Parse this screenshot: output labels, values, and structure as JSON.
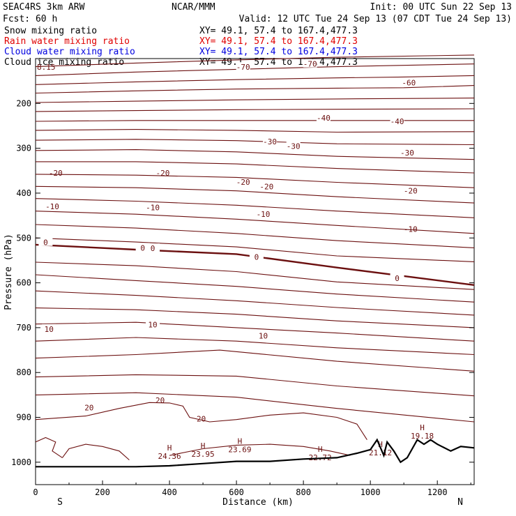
{
  "header": {
    "model": "SEAC4RS  3km ARW",
    "center": "NCAR/MMM",
    "init": "Init: 00 UTC Sun 22 Sep 13",
    "fcst": "Fcst:   60 h",
    "valid": "Valid: 12 UTC Tue 24 Sep 13 (07 CDT Tue 24 Sep 13)"
  },
  "fields": [
    {
      "label": "Snow mixing ratio",
      "xy": "XY=  49.1, 57.4 to 167.4,477.3",
      "color": "#000000"
    },
    {
      "label": "Rain water mixing ratio",
      "xy": "XY=  49.1, 57.4 to 167.4,477.3",
      "color": "#e00000"
    },
    {
      "label": "Cloud water mixing ratio",
      "xy": "XY=  49.1, 57.4 to 167.4,477.3",
      "color": "#0000e0"
    },
    {
      "label": "Cloud ice mixing ratio",
      "xy": "XY=  49.1, 57.4 to 167.4,477.3",
      "color": "#000000"
    }
  ],
  "corner_label": "8.15",
  "chart_data": {
    "type": "cross-section contour",
    "xlabel": "Distance (km)",
    "ylabel": "Pressure (hPa)",
    "xlim": [
      0,
      1310
    ],
    "ylim": [
      1050,
      100
    ],
    "x_ticks": [
      0,
      200,
      400,
      600,
      800,
      1000,
      1200
    ],
    "x_tick_labels": [
      "0",
      "200",
      "400",
      "600",
      "800",
      "1000",
      "1200"
    ],
    "y_ticks": [
      200,
      300,
      400,
      500,
      600,
      700,
      800,
      900,
      1000
    ],
    "y_tick_labels": [
      "200",
      "300",
      "400",
      "500",
      "600",
      "700",
      "800",
      "900",
      "1000"
    ],
    "x_end_labels": {
      "left": "S",
      "right": "N"
    },
    "contour_color": "#6b0f0f",
    "isotherms": [
      {
        "p": [
          [
            0,
            118
          ],
          [
            300,
            110
          ],
          [
            600,
            103
          ],
          [
            900,
            97
          ],
          [
            1310,
            92
          ]
        ]
      },
      {
        "p": [
          [
            0,
            138
          ],
          [
            300,
            130
          ],
          [
            600,
            124
          ],
          [
            900,
            118
          ],
          [
            1310,
            112
          ]
        ],
        "label": "-70",
        "at": [
          [
            620,
            119
          ],
          [
            820,
            112
          ]
        ]
      },
      {
        "p": [
          [
            0,
            158
          ],
          [
            300,
            152
          ],
          [
            600,
            147
          ],
          [
            900,
            143
          ],
          [
            1100,
            141
          ],
          [
            1310,
            138
          ]
        ]
      },
      {
        "p": [
          [
            0,
            177
          ],
          [
            300,
            172
          ],
          [
            600,
            168
          ],
          [
            900,
            166
          ],
          [
            1100,
            165
          ],
          [
            1310,
            160
          ]
        ],
        "label": "-60",
        "at": [
          [
            1115,
            154
          ]
        ]
      },
      {
        "p": [
          [
            0,
            198
          ],
          [
            300,
            195
          ],
          [
            600,
            192
          ],
          [
            900,
            190
          ],
          [
            1310,
            188
          ]
        ]
      },
      {
        "p": [
          [
            0,
            218
          ],
          [
            300,
            216
          ],
          [
            600,
            214
          ],
          [
            900,
            213
          ],
          [
            1310,
            212
          ]
        ]
      },
      {
        "p": [
          [
            0,
            240
          ],
          [
            300,
            238
          ],
          [
            600,
            238
          ],
          [
            900,
            238
          ],
          [
            1310,
            238
          ]
        ],
        "label": "-40",
        "at": [
          [
            860,
            232
          ],
          [
            1080,
            240
          ]
        ]
      },
      {
        "p": [
          [
            0,
            260
          ],
          [
            300,
            258
          ],
          [
            600,
            260
          ],
          [
            900,
            264
          ],
          [
            1310,
            263
          ]
        ]
      },
      {
        "p": [
          [
            0,
            282
          ],
          [
            300,
            280
          ],
          [
            600,
            283
          ],
          [
            900,
            290
          ],
          [
            1310,
            292
          ]
        ],
        "label": "-30",
        "at": [
          [
            700,
            285
          ],
          [
            770,
            295
          ],
          [
            1110,
            310
          ]
        ]
      },
      {
        "p": [
          [
            0,
            305
          ],
          [
            300,
            303
          ],
          [
            600,
            308
          ],
          [
            900,
            318
          ],
          [
            1310,
            325
          ]
        ]
      },
      {
        "p": [
          [
            0,
            330
          ],
          [
            300,
            330
          ],
          [
            600,
            335
          ],
          [
            900,
            345
          ],
          [
            1310,
            355
          ]
        ],
        "label": "-20",
        "at": [
          [
            60,
            355
          ],
          [
            380,
            355
          ],
          [
            620,
            375
          ],
          [
            690,
            385
          ],
          [
            1120,
            395
          ]
        ]
      },
      {
        "p": [
          [
            0,
            358
          ],
          [
            300,
            360
          ],
          [
            600,
            365
          ],
          [
            900,
            376
          ],
          [
            1310,
            388
          ]
        ]
      },
      {
        "p": [
          [
            0,
            385
          ],
          [
            300,
            388
          ],
          [
            600,
            395
          ],
          [
            900,
            408
          ],
          [
            1310,
            422
          ]
        ]
      },
      {
        "p": [
          [
            0,
            412
          ],
          [
            300,
            418
          ],
          [
            600,
            427
          ],
          [
            900,
            440
          ],
          [
            1310,
            455
          ]
        ],
        "label": "-10",
        "at": [
          [
            50,
            430
          ],
          [
            350,
            432
          ],
          [
            680,
            447
          ],
          [
            1120,
            480
          ]
        ]
      },
      {
        "p": [
          [
            0,
            440
          ],
          [
            300,
            447
          ],
          [
            600,
            458
          ],
          [
            900,
            472
          ],
          [
            1310,
            490
          ]
        ]
      },
      {
        "p": [
          [
            0,
            470
          ],
          [
            300,
            478
          ],
          [
            600,
            490
          ],
          [
            900,
            506
          ],
          [
            1310,
            522
          ]
        ]
      },
      {
        "p": [
          [
            0,
            500
          ],
          [
            300,
            509
          ],
          [
            600,
            520
          ],
          [
            900,
            540
          ],
          [
            1310,
            553
          ]
        ]
      },
      {
        "p": [
          [
            0,
            515
          ],
          [
            300,
            526
          ],
          [
            600,
            536
          ],
          [
            900,
            566
          ],
          [
            1100,
            585
          ],
          [
            1310,
            605
          ]
        ],
        "bold": true,
        "label": "0",
        "at": [
          [
            30,
            510
          ],
          [
            320,
            522
          ],
          [
            350,
            523
          ],
          [
            660,
            542
          ],
          [
            1080,
            590
          ]
        ]
      },
      {
        "p": [
          [
            0,
            554
          ],
          [
            300,
            562
          ],
          [
            600,
            575
          ],
          [
            900,
            598
          ],
          [
            1310,
            615
          ]
        ]
      },
      {
        "p": [
          [
            0,
            582
          ],
          [
            300,
            595
          ],
          [
            600,
            608
          ],
          [
            900,
            625
          ],
          [
            1310,
            643
          ]
        ]
      },
      {
        "p": [
          [
            0,
            618
          ],
          [
            300,
            628
          ],
          [
            600,
            640
          ],
          [
            900,
            655
          ],
          [
            1310,
            672
          ]
        ]
      },
      {
        "p": [
          [
            0,
            656
          ],
          [
            300,
            660
          ],
          [
            600,
            670
          ],
          [
            900,
            685
          ],
          [
            1310,
            700
          ]
        ]
      },
      {
        "p": [
          [
            0,
            692
          ],
          [
            300,
            688
          ],
          [
            600,
            700
          ],
          [
            900,
            712
          ],
          [
            1310,
            730
          ]
        ],
        "label": "10",
        "at": [
          [
            40,
            703
          ],
          [
            350,
            693
          ],
          [
            680,
            718
          ]
        ]
      },
      {
        "p": [
          [
            0,
            730
          ],
          [
            300,
            722
          ],
          [
            600,
            730
          ],
          [
            900,
            745
          ],
          [
            1310,
            760
          ]
        ]
      },
      {
        "p": [
          [
            0,
            768
          ],
          [
            300,
            760
          ],
          [
            550,
            750
          ],
          [
            900,
            775
          ],
          [
            1310,
            797
          ]
        ]
      },
      {
        "p": [
          [
            0,
            810
          ],
          [
            300,
            805
          ],
          [
            600,
            808
          ],
          [
            900,
            830
          ],
          [
            1310,
            852
          ]
        ]
      },
      {
        "p": [
          [
            0,
            850
          ],
          [
            300,
            845
          ],
          [
            600,
            855
          ],
          [
            900,
            880
          ],
          [
            1310,
            910
          ]
        ]
      }
    ],
    "maxima": [
      {
        "x": 1155,
        "p": 935,
        "value": "19.18"
      },
      {
        "x": 400,
        "p": 980,
        "value": "24.36"
      },
      {
        "x": 500,
        "p": 975,
        "value": "23.95"
      },
      {
        "x": 610,
        "p": 965,
        "value": "23.69"
      },
      {
        "x": 850,
        "p": 983,
        "value": "22.72"
      },
      {
        "x": 1030,
        "p": 972,
        "value": "21.12"
      }
    ],
    "isolabels_20": [
      "20",
      "20",
      "20"
    ],
    "terrain": [
      [
        0,
        1010
      ],
      [
        300,
        1010
      ],
      [
        400,
        1008
      ],
      [
        500,
        1003
      ],
      [
        600,
        998
      ],
      [
        700,
        998
      ],
      [
        800,
        993
      ],
      [
        900,
        990
      ],
      [
        960,
        980
      ],
      [
        1000,
        972
      ],
      [
        1020,
        950
      ],
      [
        1040,
        985
      ],
      [
        1050,
        955
      ],
      [
        1070,
        975
      ],
      [
        1090,
        1000
      ],
      [
        1110,
        990
      ],
      [
        1140,
        950
      ],
      [
        1160,
        960
      ],
      [
        1180,
        950
      ],
      [
        1200,
        960
      ],
      [
        1240,
        975
      ],
      [
        1270,
        965
      ],
      [
        1310,
        968
      ]
    ]
  }
}
